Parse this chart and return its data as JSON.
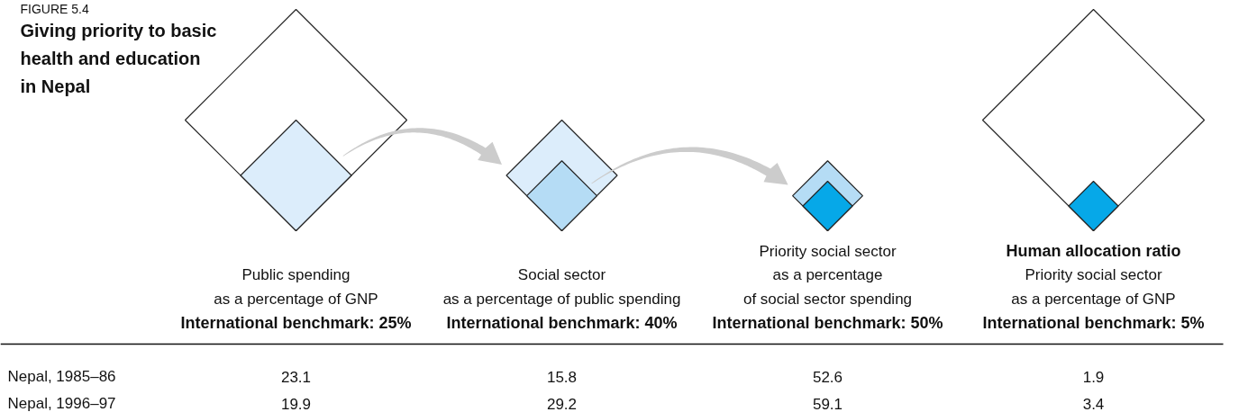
{
  "chart_data": {
    "type": "other",
    "subtitle": "FIGURE 5.4",
    "title": "Giving priority to basic\nhealth and education\nin Nepal",
    "categories": [
      "Public spending\nas a percentage of GNP",
      "Social sector\nas a percentage of public spending",
      "Priority social sector\nas a percentage\nof social sector spending",
      "Priority social sector\nas a percentage of GNP"
    ],
    "series": [
      {
        "name": "International benchmark:",
        "values": [
          25,
          40,
          50,
          5
        ],
        "value_labels": [
          "25%",
          "40%",
          "50%",
          "5%"
        ],
        "colors": [
          "#dcedfb",
          "#b5dcf5",
          "#06a8e8",
          "#06a8e8"
        ]
      },
      {
        "name": "Nepal, 1985–86",
        "values": [
          23.1,
          15.8,
          52.6,
          1.9
        ],
        "value_labels": [
          "23.1",
          "15.8",
          "52.6",
          "1.9"
        ]
      },
      {
        "name": "Nepal, 1996–97",
        "values": [
          19.9,
          29.2,
          59.1,
          3.4
        ],
        "value_labels": [
          "19.9",
          "29.2",
          "59.1",
          "3.4"
        ]
      }
    ],
    "annotations": [
      "Human allocation ratio"
    ],
    "data_labels": true
  }
}
